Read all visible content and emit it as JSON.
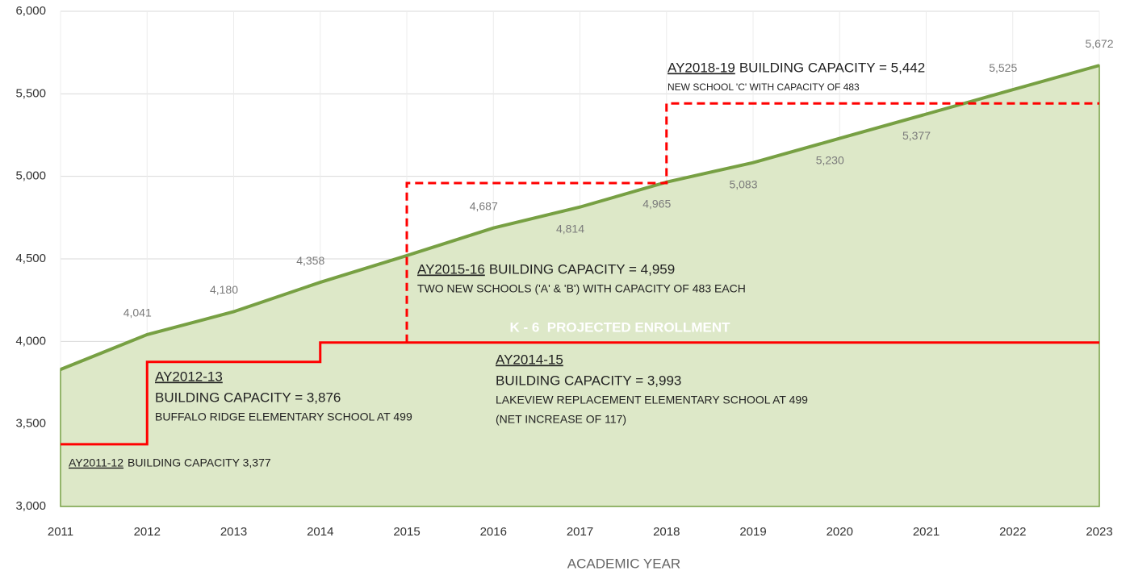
{
  "chart_data": {
    "type": "area",
    "xlabel": "ACADEMIC YEAR",
    "xlim": [
      2011,
      2023
    ],
    "xticks": [
      2011,
      2012,
      2013,
      2014,
      2015,
      2016,
      2017,
      2018,
      2019,
      2020,
      2021,
      2022,
      2023
    ],
    "ylim": [
      3000,
      6000
    ],
    "yticks": [
      {
        "value": 3000,
        "label": "3,000"
      },
      {
        "value": 3500,
        "label": "3,500"
      },
      {
        "value": 4000,
        "label": "4,000"
      },
      {
        "value": 4500,
        "label": "4,500"
      },
      {
        "value": 5000,
        "label": "5,000"
      },
      {
        "value": 5500,
        "label": "5,500"
      },
      {
        "value": 6000,
        "label": "6,000"
      }
    ],
    "grid": true,
    "series": [
      {
        "name": "K - 6  PROJECTED ENROLLMENT",
        "color": "#77a043",
        "fill": "#dde8c8",
        "x": [
          2011,
          2012,
          2013,
          2014,
          2015,
          2016,
          2017,
          2018,
          2019,
          2020,
          2021,
          2022,
          2023
        ],
        "values": [
          3830,
          4041,
          4180,
          4358,
          4520,
          4687,
          4814,
          4965,
          5083,
          5230,
          5377,
          5525,
          5672
        ],
        "value_labels": [
          null,
          "4,041",
          "4,180",
          "4,358",
          null,
          "4,687",
          "4,814",
          "4,965",
          "5,083",
          "5,230",
          "5,377",
          "5,525",
          "5,672"
        ]
      }
    ],
    "steps": [
      {
        "color": "#ff0000",
        "style": "solid",
        "x": [
          2011,
          2012,
          2014,
          2023
        ],
        "values": [
          3377,
          3876,
          3993,
          3993
        ]
      },
      {
        "color": "#ff0000",
        "style": "dashed",
        "x": [
          2015,
          2015,
          2018,
          2023
        ],
        "values": [
          3993,
          4959,
          5442,
          5442
        ]
      }
    ],
    "annotations": [
      {
        "heading": "AY2011-12",
        "lines": [
          "BUILDING CAPACITY 3,377"
        ]
      },
      {
        "heading": "AY2012-13",
        "lines": [
          "BUILDING CAPACITY = 3,876",
          "BUFFALO RIDGE ELEMENTARY SCHOOL AT 499"
        ]
      },
      {
        "heading": "AY2014-15",
        "lines": [
          "BUILDING CAPACITY = 3,993",
          "LAKEVIEW REPLACEMENT ELEMENTARY SCHOOL AT 499",
          "(NET INCREASE OF 117)"
        ]
      },
      {
        "heading": "AY2015-16",
        "lines": [
          "BUILDING CAPACITY = 4,959",
          "TWO NEW SCHOOLS ('A' & 'B') WITH CAPACITY OF 483 EACH"
        ]
      },
      {
        "heading": "AY2018-19",
        "lines": [
          "BUILDING CAPACITY = 5,442",
          "NEW SCHOOL 'C' WITH CAPACITY OF 483"
        ]
      }
    ]
  }
}
